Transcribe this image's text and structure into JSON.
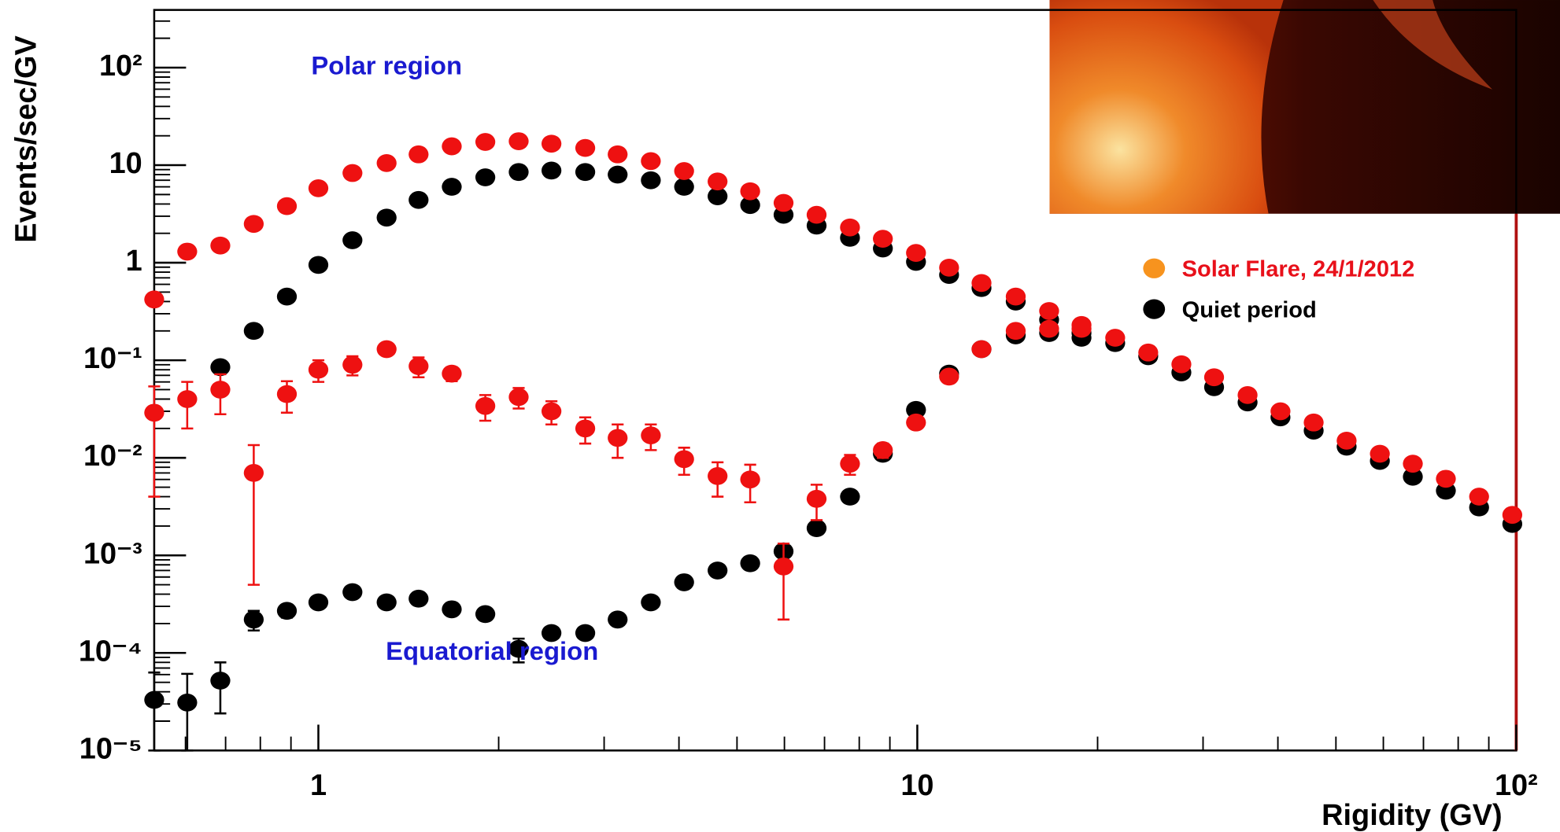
{
  "chart_data": {
    "type": "scatter",
    "x_label": "Rigidity (GV)",
    "y_label": "Events/sec/GV",
    "log_x": true,
    "log_y": true,
    "xlim": [
      0.532,
      100
    ],
    "ylim": [
      1e-05,
      390
    ],
    "xticks": [
      1,
      10,
      {
        "value": 100,
        "label": "10²"
      }
    ],
    "yticks": [
      {
        "value": 1e-05,
        "label": "10⁻⁵"
      },
      {
        "value": 0.0001,
        "label": "10⁻⁴"
      },
      {
        "value": 0.001,
        "label": "10⁻³"
      },
      {
        "value": 0.01,
        "label": "10⁻²"
      },
      {
        "value": 0.1,
        "label": "10⁻¹"
      },
      1,
      10,
      {
        "value": 100,
        "label": "10²"
      }
    ],
    "annotations": [
      {
        "text": "Polar region",
        "x": 1.3,
        "y": 100,
        "color": "#1a1ad0"
      },
      {
        "text": "Equatorial region",
        "x": 1.95,
        "y": 0.0001,
        "color": "#1a1ad0"
      }
    ],
    "legend": [
      {
        "name": "Solar Flare, 24/1/2012",
        "color": "#f7931e",
        "text_color": "#e8101a"
      },
      {
        "name": "Quiet period",
        "color": "#000000",
        "text_color": "#000000"
      }
    ],
    "series": [
      {
        "color": "#000000",
        "x": [
          0.686,
          0.78,
          0.886,
          1.0,
          1.14,
          1.3,
          1.47,
          1.67,
          1.9,
          2.16,
          2.45,
          2.79,
          3.16,
          3.59,
          4.08,
          4.64,
          5.26,
          5.98,
          6.79,
          7.72,
          8.76,
          9.95,
          11.3,
          12.8,
          14.6,
          16.6,
          18.8,
          21.4,
          24.3,
          27.6,
          31.3,
          35.6,
          40.4,
          45.9,
          52.1,
          59.2,
          67.2,
          76.3,
          86.7,
          98.5
        ],
        "values": [
          0.085,
          0.2,
          0.45,
          0.95,
          1.7,
          2.9,
          4.4,
          6.0,
          7.5,
          8.5,
          8.8,
          8.5,
          8.0,
          7.0,
          6.0,
          4.8,
          3.9,
          3.1,
          2.4,
          1.8,
          1.4,
          1.02,
          0.75,
          0.55,
          0.4,
          0.26,
          0.19,
          0.15,
          0.11,
          0.075,
          0.053,
          0.037,
          0.026,
          0.019,
          0.013,
          0.0093,
          0.0064,
          0.0046,
          0.0031,
          0.0021
        ]
      },
      {
        "color": "#ee1111",
        "x": [
          0.532,
          0.604,
          0.686,
          0.78,
          0.886,
          1.0,
          1.14,
          1.3,
          1.47,
          1.67,
          1.9,
          2.16,
          2.45,
          2.79,
          3.16,
          3.59,
          4.08,
          4.64,
          5.26,
          5.98,
          6.79,
          7.72,
          8.76,
          9.95,
          11.3,
          12.8,
          14.6,
          16.6,
          18.8,
          21.4,
          24.3,
          27.6,
          31.3,
          35.6,
          40.4,
          45.9,
          52.1,
          59.2,
          67.2,
          76.3,
          86.7,
          98.5
        ],
        "values": [
          0.42,
          1.3,
          1.5,
          2.5,
          3.8,
          5.8,
          8.3,
          10.5,
          12.9,
          15.6,
          17.3,
          17.6,
          16.6,
          15,
          12.9,
          11,
          8.7,
          6.8,
          5.4,
          4.1,
          3.1,
          2.3,
          1.76,
          1.26,
          0.89,
          0.62,
          0.45,
          0.32,
          0.23,
          0.17,
          0.12,
          0.091,
          0.067,
          0.044,
          0.03,
          0.023,
          0.015,
          0.011,
          0.0087,
          0.0061,
          0.004,
          0.0026
        ]
      },
      {
        "color": "#000000",
        "x": [
          0.532,
          0.604,
          0.686,
          0.78,
          0.886,
          1.0,
          1.14,
          1.3,
          1.47,
          1.67,
          1.9,
          2.16,
          2.45,
          2.79,
          3.16,
          3.59,
          4.08,
          4.64,
          5.26,
          5.98,
          6.79,
          7.72,
          8.76,
          9.95,
          11.3,
          12.8,
          14.6,
          16.6,
          18.8
        ],
        "values": [
          3.3e-05,
          3.1e-05,
          5.2e-05,
          0.00022,
          0.00027,
          0.00033,
          0.00042,
          0.00033,
          0.00036,
          0.00028,
          0.00025,
          0.00011,
          0.00016,
          0.00016,
          0.00022,
          0.00033,
          0.00053,
          0.0007,
          0.00083,
          0.0011,
          0.0019,
          0.004,
          0.011,
          0.031,
          0.073,
          0.13,
          0.18,
          0.19,
          0.17
        ],
        "errors": [
          3e-05,
          3e-05,
          2.8e-05,
          5e-05,
          4e-05,
          3e-05,
          3e-05,
          3e-05,
          3e-05,
          2e-05,
          2e-05,
          3e-05,
          2e-05,
          2e-05,
          2e-05,
          2e-05,
          3e-05,
          3e-05,
          3e-05,
          6e-05,
          0.0001,
          0.0002,
          0.0005,
          0.001,
          0.002,
          0.003,
          0.003,
          0.003,
          0.003
        ]
      },
      {
        "color": "#ee1111",
        "x": [
          0.532,
          0.604,
          0.686,
          0.78,
          0.886,
          1.0,
          1.14,
          1.3,
          1.47,
          1.67,
          1.9,
          2.16,
          2.45,
          2.79,
          3.16,
          3.59,
          4.08,
          4.64,
          5.26,
          5.98,
          6.79,
          7.72,
          8.76,
          9.95,
          11.3,
          12.8,
          14.6,
          16.6,
          18.8
        ],
        "values": [
          0.029,
          0.04,
          0.05,
          0.007,
          0.045,
          0.08,
          0.09,
          0.13,
          0.087,
          0.073,
          0.034,
          0.042,
          0.03,
          0.02,
          0.016,
          0.017,
          0.0097,
          0.0065,
          0.006,
          0.00077,
          0.0038,
          0.0087,
          0.012,
          0.023,
          0.068,
          0.13,
          0.2,
          0.21,
          0.21
        ],
        "errors": [
          0.025,
          0.02,
          0.022,
          0.0065,
          0.016,
          0.02,
          0.02,
          0.015,
          0.02,
          0.012,
          0.01,
          0.01,
          0.008,
          0.006,
          0.006,
          0.005,
          0.003,
          0.0025,
          0.0025,
          0.00055,
          0.0015,
          0.002,
          0.002,
          0.002,
          0.003,
          0.004,
          0.005,
          0.005,
          0.005
        ]
      }
    ]
  }
}
